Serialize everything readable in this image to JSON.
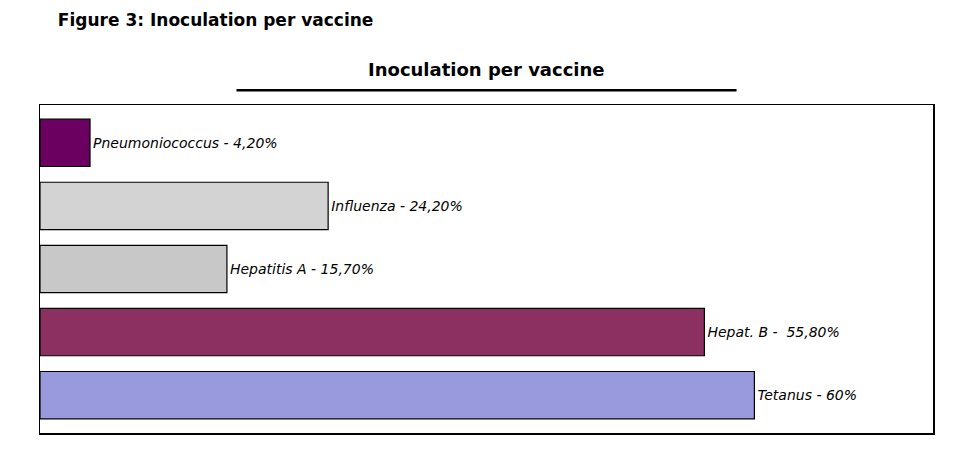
{
  "chart_data": {
    "type": "bar",
    "orientation": "horizontal",
    "title": "Figure 3: Inoculation per vaccine",
    "subtitle": "Inoculation per vaccine",
    "values": [
      4.2,
      24.2,
      15.7,
      55.8,
      60.0
    ],
    "value_labels": [
      "Pneumoniococcus - 4,20%",
      "Influenza - 24,20%",
      "Hepatitis A - 15,70%",
      "Hepat. B -  55,80%",
      "Tetanus - 60%"
    ],
    "colors": [
      "#6B0060",
      "#D3D3D3",
      "#C8C8C8",
      "#8B3060",
      "#9999DD"
    ],
    "xlim": [
      0,
      75
    ],
    "xticks": [],
    "data_labels": true,
    "tick_labels": false,
    "grid": false
  }
}
